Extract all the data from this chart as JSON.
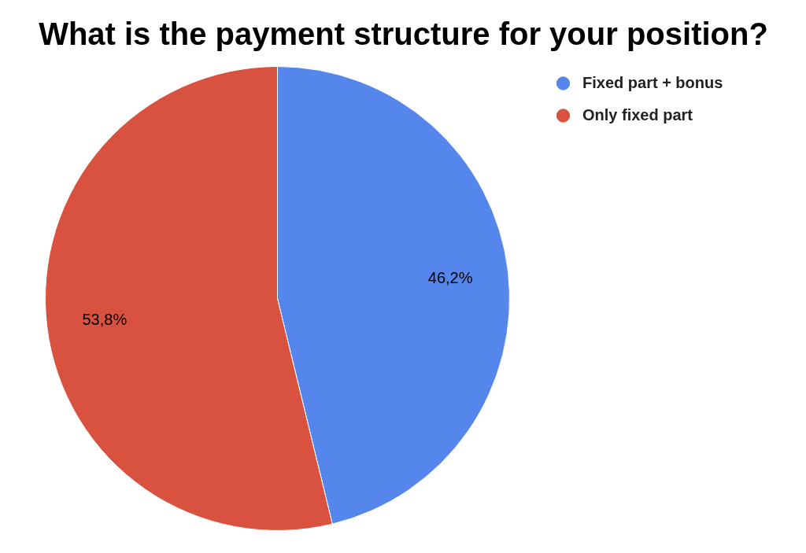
{
  "chart_data": {
    "type": "pie",
    "title": "What is the payment structure for your position?",
    "categories": [
      "Fixed part + bonus",
      "Only fixed part"
    ],
    "values": [
      46.2,
      53.8
    ],
    "colors": [
      "#5586ec",
      "#d9523f"
    ],
    "value_labels": [
      "46,2%",
      "53,8%"
    ],
    "legend": "top right"
  }
}
